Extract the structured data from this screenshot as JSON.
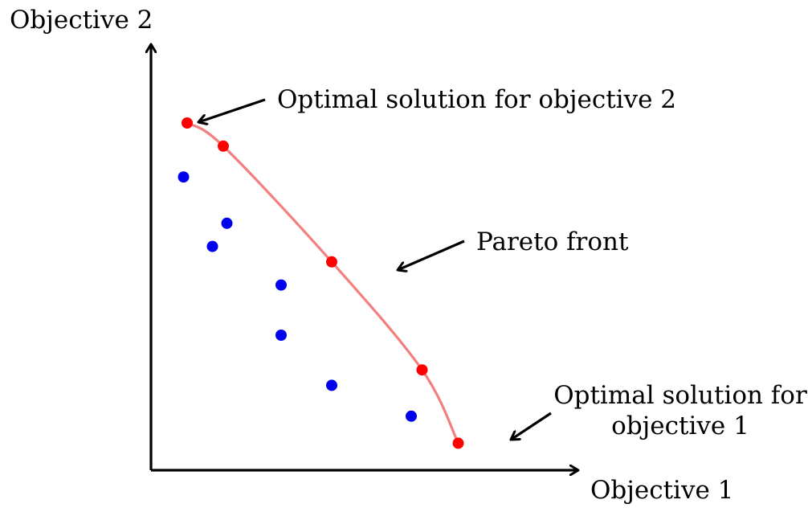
{
  "chart_data": {
    "type": "scatter",
    "xlabel": "Objective 1",
    "ylabel": "Objective 2",
    "xlim": [
      0,
      10
    ],
    "ylim": [
      0,
      10
    ],
    "pareto_points": [
      {
        "x": 1.0,
        "y": 9.0
      },
      {
        "x": 2.0,
        "y": 8.4
      },
      {
        "x": 5.0,
        "y": 5.4
      },
      {
        "x": 7.5,
        "y": 2.6
      },
      {
        "x": 8.5,
        "y": 0.7
      }
    ],
    "dominated_points": [
      {
        "x": 0.9,
        "y": 7.6
      },
      {
        "x": 2.1,
        "y": 6.4
      },
      {
        "x": 1.7,
        "y": 5.8
      },
      {
        "x": 3.6,
        "y": 4.8
      },
      {
        "x": 3.6,
        "y": 3.5
      },
      {
        "x": 5.0,
        "y": 2.2
      },
      {
        "x": 7.2,
        "y": 1.4
      }
    ],
    "annotations": {
      "obj2": "Optimal solution for objective 2",
      "pareto": "Pareto front",
      "obj1_line1": "Optimal solution for",
      "obj1_line2": "objective 1"
    },
    "colors": {
      "pareto_point": "#ff0000",
      "pareto_curve": "#f28080",
      "dominated_point": "#0000ee",
      "axis": "#000000"
    }
  }
}
